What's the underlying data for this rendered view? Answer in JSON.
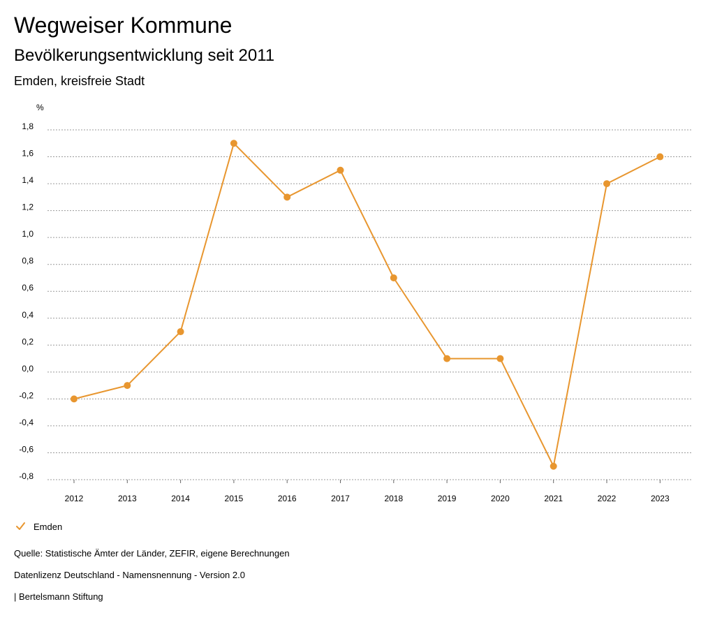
{
  "header": {
    "title": "Wegweiser Kommune",
    "subtitle": "Bevölkerungsentwicklung seit 2011",
    "region": "Emden, kreisfreie Stadt"
  },
  "chart_data": {
    "type": "line",
    "title": "Bevölkerungsentwicklung seit 2011",
    "xlabel": "",
    "ylabel": "%",
    "categories": [
      "2012",
      "2013",
      "2014",
      "2015",
      "2016",
      "2017",
      "2018",
      "2019",
      "2020",
      "2021",
      "2022",
      "2023"
    ],
    "series": [
      {
        "name": "Emden",
        "values": [
          -0.2,
          -0.1,
          0.3,
          1.7,
          1.3,
          1.5,
          0.7,
          0.1,
          0.1,
          -0.7,
          1.4,
          1.6
        ]
      }
    ],
    "ylim": [
      -0.8,
      1.8
    ],
    "yticks": [
      "1,8",
      "1,6",
      "1,4",
      "1,2",
      "1,0",
      "0,8",
      "0,6",
      "0,4",
      "0,2",
      "0,0",
      "-0,2",
      "-0,4",
      "-0,6",
      "-0,8"
    ],
    "ytick_values": [
      1.8,
      1.6,
      1.4,
      1.2,
      1.0,
      0.8,
      0.6,
      0.4,
      0.2,
      0.0,
      -0.2,
      -0.4,
      -0.6,
      -0.8
    ],
    "grid": true,
    "legend_position": "bottom-left",
    "series_color": "#e8962f"
  },
  "legend": {
    "label": "Emden",
    "icon": "check-icon"
  },
  "footer": {
    "source": "Quelle: Statistische Ämter der Länder, ZEFIR, eigene Berechnungen",
    "license": "Datenlizenz Deutschland - Namensnennung - Version 2.0",
    "publisher": "| Bertelsmann Stiftung"
  }
}
